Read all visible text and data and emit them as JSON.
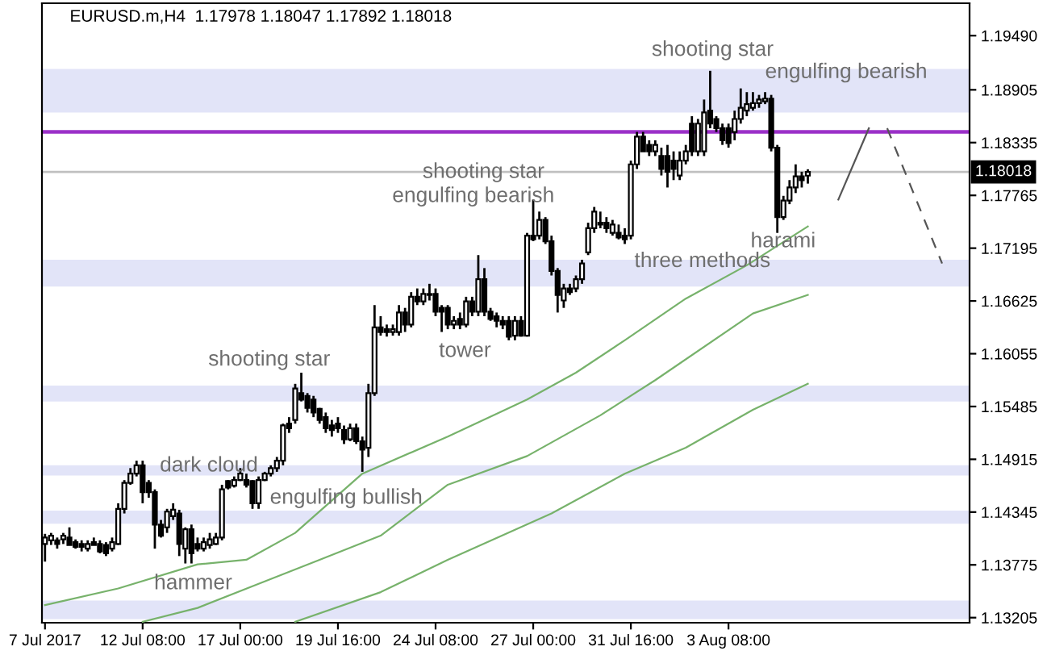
{
  "chart_data": {
    "type": "candlestick",
    "title": "EURUSD.m,H4  1.17978 1.18047 1.17892 1.18018",
    "categories": [
      "7 Jul 2017",
      null,
      null,
      null,
      null,
      null,
      null,
      null,
      null,
      null,
      null,
      null,
      null,
      null,
      null,
      null,
      "12 Jul 08:00",
      null,
      null,
      null,
      null,
      null,
      null,
      null,
      null,
      null,
      null,
      null,
      null,
      null,
      null,
      null,
      "17 Jul 00:00",
      null,
      null,
      null,
      null,
      null,
      null,
      null,
      null,
      null,
      null,
      null,
      null,
      null,
      null,
      null,
      "19 Jul 16:00",
      null,
      null,
      null,
      null,
      null,
      null,
      null,
      null,
      null,
      null,
      null,
      null,
      null,
      null,
      null,
      "24 Jul 08:00",
      null,
      null,
      null,
      null,
      null,
      null,
      null,
      null,
      null,
      null,
      null,
      null,
      null,
      null,
      null,
      "27 Jul 00:00",
      null,
      null,
      null,
      null,
      null,
      null,
      null,
      null,
      null,
      null,
      null,
      null,
      null,
      null,
      null,
      "31 Jul 16:00",
      null,
      null,
      null,
      null,
      null,
      null,
      null,
      null,
      null,
      null,
      null,
      null,
      null,
      null,
      null,
      "3 Aug 08:00",
      null,
      null,
      null,
      null,
      null,
      null,
      null,
      null,
      null,
      null,
      null,
      null,
      null,
      null,
      null,
      null,
      null,
      null,
      null,
      null,
      null,
      null,
      null,
      null,
      null,
      null,
      null,
      null,
      null,
      null,
      null,
      null,
      null,
      null,
      null,
      null,
      null,
      null,
      null
    ],
    "ohlc": [
      [
        1.14,
        1.1411,
        1.1381,
        1.1407
      ],
      [
        1.1404,
        1.1412,
        1.1399,
        1.1409
      ],
      [
        1.1404,
        1.1407,
        1.1395,
        1.14
      ],
      [
        1.1405,
        1.1412,
        1.14,
        1.1409
      ],
      [
        1.1407,
        1.1418,
        1.1399,
        1.1399
      ],
      [
        1.1402,
        1.1405,
        1.1395,
        1.1397
      ],
      [
        1.14,
        1.1404,
        1.1392,
        1.1397
      ],
      [
        1.1395,
        1.1404,
        1.1392,
        1.14
      ],
      [
        1.1402,
        1.1407,
        1.1399,
        1.1399
      ],
      [
        1.14,
        1.1404,
        1.139,
        1.1392
      ],
      [
        1.1399,
        1.1402,
        1.1387,
        1.139
      ],
      [
        1.1395,
        1.1407,
        1.1392,
        1.1402
      ],
      [
        1.14,
        1.1444,
        1.1399,
        1.1438
      ],
      [
        1.1438,
        1.1469,
        1.1433,
        1.1466
      ],
      [
        1.1466,
        1.1482,
        1.1464,
        1.1476
      ],
      [
        1.1476,
        1.149,
        1.1473,
        1.1485
      ],
      [
        1.1485,
        1.149,
        1.1444,
        1.1456
      ],
      [
        1.1466,
        1.1469,
        1.145,
        1.1456
      ],
      [
        1.1456,
        1.1459,
        1.1395,
        1.1421
      ],
      [
        1.1421,
        1.1426,
        1.1407,
        1.1409
      ],
      [
        1.1418,
        1.1438,
        1.1412,
        1.1435
      ],
      [
        1.143,
        1.1444,
        1.1426,
        1.1437
      ],
      [
        1.1433,
        1.1437,
        1.1387,
        1.14
      ],
      [
        1.1395,
        1.1418,
        1.1379,
        1.1416
      ],
      [
        1.1416,
        1.1421,
        1.1379,
        1.139
      ],
      [
        1.14,
        1.1407,
        1.1392,
        1.1395
      ],
      [
        1.1395,
        1.1407,
        1.1392,
        1.1402
      ],
      [
        1.1399,
        1.1412,
        1.1395,
        1.1405
      ],
      [
        1.14,
        1.1412,
        1.1399,
        1.1407
      ],
      [
        1.1407,
        1.1464,
        1.1404,
        1.1459
      ],
      [
        1.1468,
        1.1469,
        1.1459,
        1.1461
      ],
      [
        1.1463,
        1.1473,
        1.1461,
        1.1469
      ],
      [
        1.1469,
        1.1482,
        1.1468,
        1.1476
      ],
      [
        1.1469,
        1.1476,
        1.1461,
        1.1464
      ],
      [
        1.1468,
        1.1469,
        1.1438,
        1.1444
      ],
      [
        1.1444,
        1.1473,
        1.1438,
        1.1469
      ],
      [
        1.1469,
        1.1478,
        1.1468,
        1.1476
      ],
      [
        1.1476,
        1.1485,
        1.1473,
        1.1482
      ],
      [
        1.1482,
        1.1494,
        1.1478,
        1.149
      ],
      [
        1.149,
        1.153,
        1.1485,
        1.1528
      ],
      [
        1.153,
        1.1537,
        1.152,
        1.1525
      ],
      [
        1.1534,
        1.1573,
        1.153,
        1.1568
      ],
      [
        1.1563,
        1.1585,
        1.1554,
        1.1556
      ],
      [
        1.156,
        1.1563,
        1.1542,
        1.1547
      ],
      [
        1.1556,
        1.156,
        1.1537,
        1.1542
      ],
      [
        1.1546,
        1.1547,
        1.153,
        1.1534
      ],
      [
        1.1537,
        1.1542,
        1.152,
        1.1525
      ],
      [
        1.1528,
        1.1534,
        1.1516,
        1.1523
      ],
      [
        1.153,
        1.1537,
        1.152,
        1.1525
      ],
      [
        1.1523,
        1.1528,
        1.1508,
        1.1513
      ],
      [
        1.1513,
        1.153,
        1.1511,
        1.1525
      ],
      [
        1.1525,
        1.153,
        1.1508,
        1.1511
      ],
      [
        1.1511,
        1.1516,
        1.1478,
        1.1502
      ],
      [
        1.1504,
        1.1573,
        1.1494,
        1.1563
      ],
      [
        1.1563,
        1.1658,
        1.156,
        1.1634
      ],
      [
        1.1634,
        1.1646,
        1.1625,
        1.1629
      ],
      [
        1.1632,
        1.1637,
        1.1624,
        1.1629
      ],
      [
        1.1629,
        1.1637,
        1.1625,
        1.1632
      ],
      [
        1.1629,
        1.1658,
        1.1625,
        1.165
      ],
      [
        1.165,
        1.1655,
        1.1629,
        1.1637
      ],
      [
        1.1637,
        1.1672,
        1.1634,
        1.1667
      ],
      [
        1.1667,
        1.1676,
        1.1658,
        1.1662
      ],
      [
        1.1662,
        1.1676,
        1.1658,
        1.167
      ],
      [
        1.1669,
        1.1681,
        1.1663,
        1.167
      ],
      [
        1.167,
        1.1676,
        1.1646,
        1.1651
      ],
      [
        1.1655,
        1.1658,
        1.1629,
        1.1651
      ],
      [
        1.1655,
        1.1658,
        1.1632,
        1.1637
      ],
      [
        1.1637,
        1.1646,
        1.1632,
        1.1641
      ],
      [
        1.1643,
        1.165,
        1.1632,
        1.1637
      ],
      [
        1.1637,
        1.1667,
        1.1634,
        1.1662
      ],
      [
        1.1662,
        1.1667,
        1.1646,
        1.1651
      ],
      [
        1.1651,
        1.1712,
        1.1646,
        1.1686
      ],
      [
        1.1686,
        1.1698,
        1.1646,
        1.1651
      ],
      [
        1.1651,
        1.1655,
        1.1641,
        1.1643
      ],
      [
        1.1646,
        1.165,
        1.1634,
        1.1641
      ],
      [
        1.1641,
        1.1646,
        1.1632,
        1.1637
      ],
      [
        1.1641,
        1.1646,
        1.162,
        1.1624
      ],
      [
        1.1625,
        1.1646,
        1.162,
        1.1641
      ],
      [
        1.1641,
        1.1646,
        1.1624,
        1.1625
      ],
      [
        1.1625,
        1.1736,
        1.1624,
        1.1733
      ],
      [
        1.1733,
        1.1772,
        1.1727,
        1.1729
      ],
      [
        1.1733,
        1.1759,
        1.1729,
        1.175
      ],
      [
        1.175,
        1.1753,
        1.1724,
        1.1727
      ],
      [
        1.1727,
        1.1733,
        1.169,
        1.1695
      ],
      [
        1.1695,
        1.1698,
        1.165,
        1.1669
      ],
      [
        1.1663,
        1.1681,
        1.1655,
        1.1676
      ],
      [
        1.1676,
        1.1681,
        1.1669,
        1.1672
      ],
      [
        1.1676,
        1.169,
        1.1672,
        1.1686
      ],
      [
        1.1686,
        1.1707,
        1.1681,
        1.1703
      ],
      [
        1.1715,
        1.1747,
        1.1712,
        1.1741
      ],
      [
        1.1741,
        1.1764,
        1.1736,
        1.1759
      ],
      [
        1.1747,
        1.1759,
        1.1741,
        1.1745
      ],
      [
        1.1747,
        1.1753,
        1.1736,
        1.1741
      ],
      [
        1.1736,
        1.175,
        1.1733,
        1.1745
      ],
      [
        1.1736,
        1.1745,
        1.1729,
        1.1731
      ],
      [
        1.1733,
        1.1741,
        1.1724,
        1.1729
      ],
      [
        1.1733,
        1.1814,
        1.1729,
        1.181
      ],
      [
        1.181,
        1.1845,
        1.1805,
        1.184
      ],
      [
        1.184,
        1.1845,
        1.1824,
        1.1824
      ],
      [
        1.1831,
        1.1836,
        1.1819,
        1.1824
      ],
      [
        1.1824,
        1.1836,
        1.1819,
        1.1831
      ],
      [
        1.1819,
        1.1828,
        1.1798,
        1.1805
      ],
      [
        1.1819,
        1.1831,
        1.1785,
        1.1802
      ],
      [
        1.1814,
        1.1824,
        1.1793,
        1.1805
      ],
      [
        1.1798,
        1.1824,
        1.1793,
        1.1814
      ],
      [
        1.1814,
        1.1831,
        1.181,
        1.1824
      ],
      [
        1.1854,
        1.1862,
        1.1819,
        1.1824
      ],
      [
        1.1824,
        1.1859,
        1.1819,
        1.1854
      ],
      [
        1.1824,
        1.188,
        1.1819,
        1.1866
      ],
      [
        1.1868,
        1.1911,
        1.1849,
        1.1854
      ],
      [
        1.1859,
        1.1862,
        1.1845,
        1.1849
      ],
      [
        1.1849,
        1.1854,
        1.1831,
        1.1836
      ],
      [
        1.1849,
        1.1854,
        1.1828,
        1.1833
      ],
      [
        1.1845,
        1.1868,
        1.1836,
        1.1859
      ],
      [
        1.1859,
        1.1892,
        1.1854,
        1.1871
      ],
      [
        1.1868,
        1.1888,
        1.1862,
        1.1875
      ],
      [
        1.1871,
        1.1888,
        1.1868,
        1.1876
      ],
      [
        1.1876,
        1.1885,
        1.1871,
        1.188
      ],
      [
        1.1878,
        1.1888,
        1.1875,
        1.1881
      ],
      [
        1.1881,
        1.1885,
        1.1824,
        1.1828
      ],
      [
        1.1828,
        1.1831,
        1.1736,
        1.1753
      ],
      [
        1.1753,
        1.1776,
        1.175,
        1.1771
      ],
      [
        1.1771,
        1.1793,
        1.1767,
        1.1785
      ],
      [
        1.1785,
        1.181,
        1.1779,
        1.1797
      ],
      [
        1.1797,
        1.1802,
        1.1785,
        1.1793
      ],
      [
        1.17978,
        1.18047,
        1.17892,
        1.18018
      ],
      null,
      null,
      null,
      null,
      null,
      null,
      null,
      null,
      null,
      null,
      null,
      null,
      null,
      null,
      null,
      null,
      null,
      null,
      null,
      null,
      null,
      null,
      null,
      null,
      null,
      null
    ],
    "series": [
      {
        "type": "line",
        "color": "#77b26b",
        "values": [
          1.1334,
          null,
          null,
          null,
          null,
          null,
          null,
          null,
          null,
          null,
          null,
          null,
          1.1352,
          null,
          null,
          null,
          null,
          null,
          null,
          null,
          null,
          null,
          null,
          null,
          null,
          1.1378,
          null,
          null,
          null,
          null,
          null,
          null,
          null,
          1.1383,
          null,
          null,
          null,
          null,
          null,
          null,
          null,
          1.1412,
          null,
          null,
          null,
          null,
          null,
          null,
          null,
          null,
          null,
          null,
          1.1476,
          null,
          null,
          null,
          null,
          null,
          null,
          null,
          null,
          null,
          null,
          null,
          null,
          null,
          1.1516,
          null,
          null,
          null,
          null,
          null,
          null,
          null,
          null,
          null,
          null,
          null,
          null,
          1.1556,
          null,
          null,
          null,
          null,
          null,
          null,
          null,
          1.1585,
          null,
          null,
          null,
          null,
          null,
          null,
          null,
          1.162,
          null,
          null,
          null,
          null,
          null,
          null,
          null,
          null,
          null,
          1.1665,
          null,
          null,
          null,
          null,
          null,
          null,
          null,
          null,
          null,
          1.1701,
          null,
          null,
          null,
          null,
          null,
          null,
          null,
          null,
          null,
          1.1743,
          null,
          null,
          null,
          null,
          null,
          null,
          null,
          null,
          null,
          null,
          null,
          null,
          null,
          null,
          null,
          null,
          null,
          null,
          null,
          null,
          null,
          null,
          null,
          null,
          null,
          null
        ]
      },
      {
        "type": "line",
        "color": "#77b26b",
        "values": [
          null,
          null,
          null,
          null,
          null,
          null,
          null,
          null,
          null,
          null,
          null,
          null,
          null,
          null,
          null,
          null,
          1.1316,
          null,
          null,
          null,
          null,
          null,
          null,
          null,
          null,
          1.1331,
          null,
          null,
          null,
          null,
          null,
          null,
          null,
          null,
          null,
          1.1357,
          null,
          null,
          null,
          null,
          null,
          null,
          null,
          null,
          null,
          1.1383,
          null,
          null,
          null,
          null,
          null,
          null,
          null,
          null,
          null,
          1.1409,
          null,
          null,
          null,
          null,
          null,
          null,
          null,
          null,
          null,
          null,
          1.1464,
          null,
          null,
          null,
          null,
          null,
          null,
          null,
          null,
          null,
          null,
          null,
          null,
          1.1495,
          null,
          null,
          null,
          null,
          null,
          null,
          null,
          null,
          null,
          null,
          null,
          1.1539,
          null,
          null,
          null,
          null,
          null,
          null,
          null,
          null,
          1.1577,
          null,
          null,
          null,
          null,
          null,
          null,
          null,
          null,
          null,
          null,
          null,
          null,
          null,
          null,
          null,
          1.1649,
          null,
          null,
          null,
          null,
          null,
          null,
          null,
          null,
          1.1669,
          null,
          null,
          null,
          null,
          null,
          null,
          null,
          null,
          null,
          null,
          null,
          null,
          null,
          null,
          null,
          null,
          null,
          null,
          null,
          null,
          null,
          null,
          null,
          null,
          null,
          null
        ]
      },
      {
        "type": "line",
        "color": "#77b26b",
        "values": [
          null,
          null,
          null,
          null,
          null,
          null,
          null,
          null,
          null,
          null,
          null,
          null,
          null,
          null,
          null,
          null,
          null,
          null,
          null,
          null,
          null,
          null,
          null,
          null,
          null,
          null,
          null,
          null,
          null,
          null,
          null,
          null,
          null,
          null,
          null,
          null,
          null,
          null,
          null,
          null,
          null,
          1.1316,
          null,
          null,
          null,
          null,
          null,
          null,
          null,
          null,
          null,
          null,
          null,
          null,
          null,
          1.1348,
          null,
          null,
          null,
          null,
          null,
          null,
          null,
          null,
          null,
          null,
          1.1383,
          null,
          null,
          null,
          null,
          null,
          null,
          null,
          null,
          null,
          null,
          null,
          null,
          null,
          null,
          null,
          null,
          1.1433,
          null,
          null,
          null,
          null,
          null,
          null,
          null,
          null,
          null,
          null,
          null,
          1.1476,
          null,
          null,
          null,
          null,
          null,
          null,
          null,
          null,
          null,
          1.1504,
          null,
          null,
          null,
          null,
          null,
          null,
          null,
          null,
          null,
          null,
          1.1545,
          null,
          null,
          null,
          null,
          null,
          null,
          null,
          null,
          1.1573,
          null,
          null,
          null,
          null,
          null,
          null,
          null,
          null,
          null,
          null,
          null,
          null,
          null,
          null,
          null,
          null,
          null,
          null,
          null,
          null,
          null,
          null,
          null,
          null,
          null,
          null
        ]
      },
      {
        "type": "line",
        "color": "#555555",
        "line_style": "solid",
        "values": [
          null,
          null,
          null,
          null,
          null,
          null,
          null,
          null,
          null,
          null,
          null,
          null,
          null,
          null,
          null,
          null,
          null,
          null,
          null,
          null,
          null,
          null,
          null,
          null,
          null,
          null,
          null,
          null,
          null,
          null,
          null,
          null,
          null,
          null,
          null,
          null,
          null,
          null,
          null,
          null,
          null,
          null,
          null,
          null,
          null,
          null,
          null,
          null,
          null,
          null,
          null,
          null,
          null,
          null,
          null,
          null,
          null,
          null,
          null,
          null,
          null,
          null,
          null,
          null,
          null,
          null,
          null,
          null,
          null,
          null,
          null,
          null,
          null,
          null,
          null,
          null,
          null,
          null,
          null,
          null,
          null,
          null,
          null,
          null,
          null,
          null,
          null,
          null,
          null,
          null,
          null,
          null,
          null,
          null,
          null,
          null,
          null,
          null,
          null,
          null,
          null,
          null,
          null,
          null,
          null,
          null,
          null,
          null,
          null,
          null,
          null,
          null,
          null,
          null,
          null,
          null,
          null,
          null,
          null,
          null,
          null,
          null,
          null,
          null,
          null,
          null,
          null,
          null,
          null,
          null,
          1.1772,
          null,
          null,
          null,
          null,
          1.1849,
          null,
          null,
          null,
          null,
          null,
          null,
          null,
          null,
          null,
          null,
          null,
          null,
          null,
          null,
          null,
          null
        ]
      },
      {
        "type": "line",
        "color": "#555555",
        "line_style": "dashed",
        "values": [
          null,
          null,
          null,
          null,
          null,
          null,
          null,
          null,
          null,
          null,
          null,
          null,
          null,
          null,
          null,
          null,
          null,
          null,
          null,
          null,
          null,
          null,
          null,
          null,
          null,
          null,
          null,
          null,
          null,
          null,
          null,
          null,
          null,
          null,
          null,
          null,
          null,
          null,
          null,
          null,
          null,
          null,
          null,
          null,
          null,
          null,
          null,
          null,
          null,
          null,
          null,
          null,
          null,
          null,
          null,
          null,
          null,
          null,
          null,
          null,
          null,
          null,
          null,
          null,
          null,
          null,
          null,
          null,
          null,
          null,
          null,
          null,
          null,
          null,
          null,
          null,
          null,
          null,
          null,
          null,
          null,
          null,
          null,
          null,
          null,
          null,
          null,
          null,
          null,
          null,
          null,
          null,
          null,
          null,
          null,
          null,
          null,
          null,
          null,
          null,
          null,
          null,
          null,
          null,
          null,
          null,
          null,
          null,
          null,
          null,
          null,
          null,
          null,
          null,
          null,
          null,
          null,
          null,
          null,
          null,
          null,
          null,
          null,
          null,
          null,
          null,
          null,
          null,
          null,
          null,
          null,
          null,
          null,
          null,
          null,
          null,
          null,
          null,
          1.1849,
          null,
          null,
          null,
          null,
          null,
          null,
          null,
          null,
          1.1703,
          null,
          null,
          null,
          null
        ]
      }
    ],
    "bands": [
      {
        "axis": "y",
        "from": 1.1866,
        "to": 1.1913,
        "color": "#e2e4f8"
      },
      {
        "axis": "y",
        "from": 1.1678,
        "to": 1.1707,
        "color": "#e2e4f8"
      },
      {
        "axis": "y",
        "from": 1.1554,
        "to": 1.1571,
        "color": "#e2e4f8"
      },
      {
        "axis": "y",
        "from": 1.1474,
        "to": 1.1485,
        "color": "#e2e4f8"
      },
      {
        "axis": "y",
        "from": 1.1422,
        "to": 1.1436,
        "color": "#e2e4f8"
      },
      {
        "axis": "y",
        "from": 1.1319,
        "to": 1.1339,
        "color": "#e2e4f8"
      }
    ],
    "ref_lines": [
      {
        "axis": "y",
        "value": 1.18451,
        "color": "#9b30c8"
      },
      {
        "axis": "y",
        "value": 1.18018,
        "label": "1.18018",
        "color": "#c0c0c0"
      }
    ],
    "annotations": [
      "shooting star",
      "engulfing bearish",
      "shooting star",
      "engulfing bearish",
      "three methods",
      "harami",
      "tower",
      "shooting star",
      "dark cloud",
      "engulfing bullish",
      "hammer"
    ],
    "ylim": [
      1.1315,
      1.1984
    ],
    "yticks": [
      {
        "value": 1.1949,
        "label": "1.19490"
      },
      1.18905,
      1.18335,
      1.17765,
      1.17195,
      1.16625,
      1.16055,
      1.15485,
      1.14915,
      1.14345,
      1.13775,
      1.13205
    ],
    "grid": false,
    "legend": false
  }
}
